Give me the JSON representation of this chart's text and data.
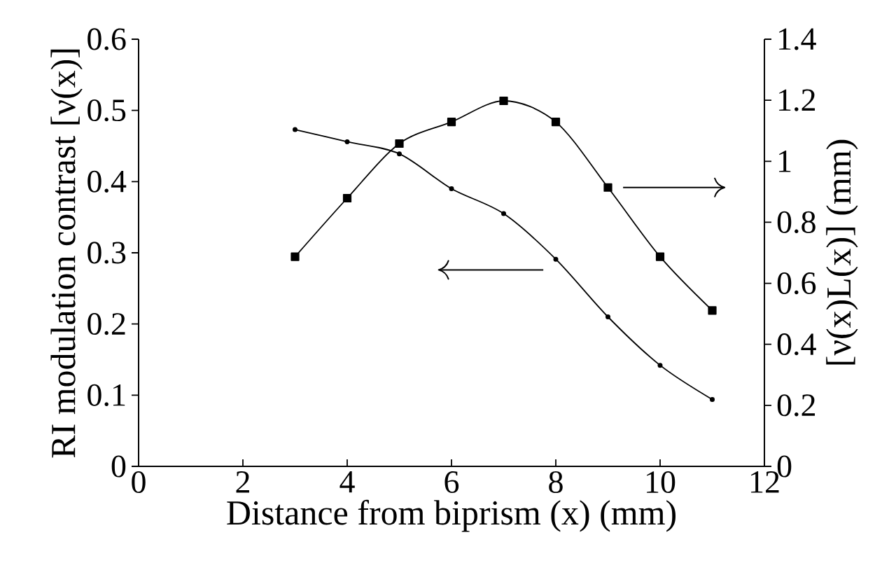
{
  "chart_data": {
    "type": "line",
    "xlabel": "Distance from biprism (x) (mm)",
    "ylabel": "RI modulation contrast [ν(x)]",
    "y2label": "[ν(x)L(x)] (mm)",
    "x": [
      3,
      4,
      5,
      6,
      7,
      8,
      9,
      10,
      11
    ],
    "xlim": [
      0,
      12
    ],
    "xticks": [
      0,
      2,
      4,
      6,
      8,
      10,
      12
    ],
    "ylim": [
      0,
      0.6
    ],
    "yticks": [
      0,
      0.1,
      0.2,
      0.3,
      0.4,
      0.5,
      0.6
    ],
    "y2lim": [
      0,
      1.4
    ],
    "y2ticks": [
      0,
      0.2,
      0.4,
      0.6,
      0.8,
      1,
      1.2,
      1.4
    ],
    "series": [
      {
        "color": "#000000",
        "marker": "circle",
        "values": [
          0.473,
          0.456,
          0.439,
          0.39,
          0.355,
          0.291,
          0.21,
          0.142,
          0.094
        ]
      },
      {
        "color": "#000000",
        "marker": "square",
        "axis": "y2",
        "values": [
          0.687,
          0.879,
          1.058,
          1.129,
          1.198,
          1.129,
          0.914,
          0.687,
          0.511
        ]
      }
    ]
  }
}
